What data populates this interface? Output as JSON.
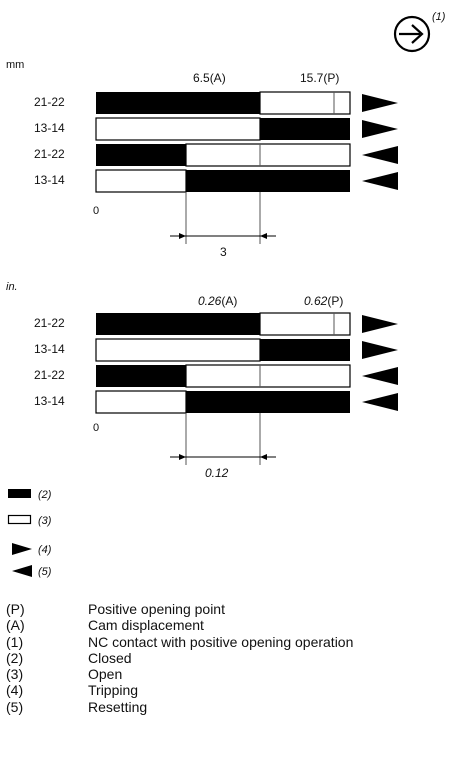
{
  "symbol": {
    "icon": "positive-opening-arrow-icon",
    "ref": "(1)"
  },
  "diagrams": [
    {
      "unit": "mm",
      "markers": [
        {
          "value": "6.5",
          "suffix": "(A)"
        },
        {
          "value": "15.7",
          "suffix": "(P)"
        }
      ],
      "rows": [
        {
          "label": "21-22",
          "segments": [
            "closed",
            "open",
            "open"
          ],
          "direction": "tripping"
        },
        {
          "label": "13-14",
          "segments": [
            "open",
            "open",
            "closed"
          ],
          "direction": "tripping"
        },
        {
          "label": "21-22",
          "segments": [
            "closed",
            "open",
            "open"
          ],
          "direction": "resetting"
        },
        {
          "label": "13-14",
          "segments": [
            "open",
            "closed",
            "closed"
          ],
          "direction": "resetting"
        }
      ],
      "zero": "0",
      "dimension": "3"
    },
    {
      "unit": "in.",
      "markers": [
        {
          "value": "0.26",
          "suffix": "(A)"
        },
        {
          "value": "0.62",
          "suffix": "(P)"
        }
      ],
      "rows": [
        {
          "label": "21-22",
          "segments": [
            "closed",
            "open",
            "open"
          ],
          "direction": "tripping"
        },
        {
          "label": "13-14",
          "segments": [
            "open",
            "open",
            "closed"
          ],
          "direction": "tripping"
        },
        {
          "label": "21-22",
          "segments": [
            "closed",
            "open",
            "open"
          ],
          "direction": "resetting"
        },
        {
          "label": "13-14",
          "segments": [
            "open",
            "closed",
            "closed"
          ],
          "direction": "resetting"
        }
      ],
      "zero": "0",
      "dimension": "0.12"
    }
  ],
  "key": [
    {
      "symbol": "closed-bar-icon",
      "ref": "(2)"
    },
    {
      "symbol": "open-bar-icon",
      "ref": "(3)"
    },
    {
      "symbol": "tripping-arrow-icon",
      "ref": "(4)"
    },
    {
      "symbol": "resetting-arrow-icon",
      "ref": "(5)"
    }
  ],
  "legend": [
    {
      "key": "(P)",
      "text": "Positive opening point"
    },
    {
      "key": "(A)",
      "text": "Cam displacement"
    },
    {
      "key": "(1)",
      "text": "NC contact with positive opening operation"
    },
    {
      "key": "(2)",
      "text": "Closed"
    },
    {
      "key": "(3)",
      "text": "Open"
    },
    {
      "key": "(4)",
      "text": "Tripping"
    },
    {
      "key": "(5)",
      "text": "Resetting"
    }
  ],
  "colors": {
    "closed": "#000000",
    "open": "#ffffff",
    "ink": "#111111",
    "guide": "#555555"
  }
}
